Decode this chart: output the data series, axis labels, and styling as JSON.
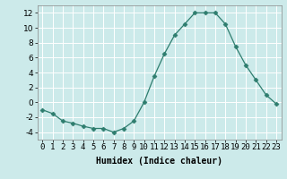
{
  "x": [
    0,
    1,
    2,
    3,
    4,
    5,
    6,
    7,
    8,
    9,
    10,
    11,
    12,
    13,
    14,
    15,
    16,
    17,
    18,
    19,
    20,
    21,
    22,
    23
  ],
  "y": [
    -1,
    -1.5,
    -2.5,
    -2.8,
    -3.2,
    -3.5,
    -3.5,
    -4.0,
    -3.5,
    -2.5,
    0,
    3.5,
    6.5,
    9,
    10.5,
    12,
    12,
    12,
    10.5,
    7.5,
    5,
    3,
    1,
    -0.2
  ],
  "line_color": "#2e7d6e",
  "marker": "D",
  "marker_size": 2.5,
  "bg_color": "#cceaea",
  "grid_color": "#ffffff",
  "xlabel": "Humidex (Indice chaleur)",
  "xlabel_fontsize": 7,
  "xtick_labels": [
    "0",
    "1",
    "2",
    "3",
    "4",
    "5",
    "6",
    "7",
    "8",
    "9",
    "10",
    "11",
    "12",
    "13",
    "14",
    "15",
    "16",
    "17",
    "18",
    "19",
    "20",
    "21",
    "22",
    "23"
  ],
  "ylim": [
    -5,
    13
  ],
  "yticks": [
    -4,
    -2,
    0,
    2,
    4,
    6,
    8,
    10,
    12
  ],
  "tick_fontsize": 6.5
}
